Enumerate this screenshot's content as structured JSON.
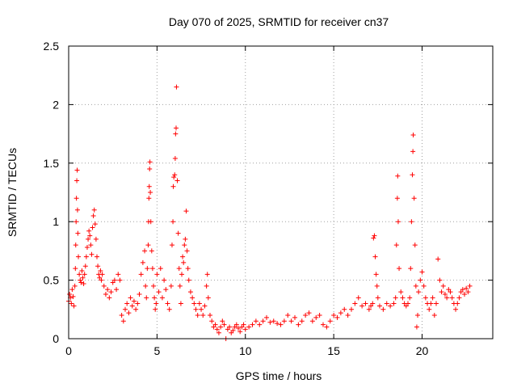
{
  "chart_data": {
    "type": "scatter",
    "title": "Day 070 of 2025, SRMTID for receiver cn37",
    "xlabel": "GPS time / hours",
    "ylabel": "SRMTID / TECUs",
    "xlim": [
      0,
      24
    ],
    "ylim": [
      0,
      2.5
    ],
    "xticks": [
      0,
      5,
      10,
      15,
      20
    ],
    "xtick_labels": [
      "0",
      "5",
      "10",
      "15",
      "20"
    ],
    "yticks": [
      0,
      0.5,
      1,
      1.5,
      2,
      2.5
    ],
    "ytick_labels": [
      "0",
      "0.5",
      "1",
      "1.5",
      "2",
      "2.5"
    ],
    "grid": true,
    "marker": "plus",
    "series": [
      {
        "name": "cn37",
        "color": "#ff0000",
        "points": [
          [
            0.0,
            0.32
          ],
          [
            0.05,
            0.38
          ],
          [
            0.1,
            0.35
          ],
          [
            0.15,
            0.3
          ],
          [
            0.2,
            0.42
          ],
          [
            0.25,
            0.36
          ],
          [
            0.3,
            0.28
          ],
          [
            0.35,
            0.45
          ],
          [
            0.38,
            0.6
          ],
          [
            0.4,
            0.8
          ],
          [
            0.42,
            1.0
          ],
          [
            0.44,
            1.2
          ],
          [
            0.46,
            1.35
          ],
          [
            0.48,
            1.44
          ],
          [
            0.5,
            1.1
          ],
          [
            0.52,
            0.9
          ],
          [
            0.55,
            0.7
          ],
          [
            0.6,
            0.55
          ],
          [
            0.65,
            0.5
          ],
          [
            0.7,
            0.48
          ],
          [
            0.75,
            0.58
          ],
          [
            0.8,
            0.52
          ],
          [
            0.85,
            0.47
          ],
          [
            0.9,
            0.55
          ],
          [
            0.95,
            0.62
          ],
          [
            1.0,
            0.7
          ],
          [
            1.05,
            0.78
          ],
          [
            1.1,
            0.85
          ],
          [
            1.15,
            0.92
          ],
          [
            1.2,
            0.88
          ],
          [
            1.25,
            0.8
          ],
          [
            1.3,
            0.72
          ],
          [
            1.35,
            0.95
          ],
          [
            1.4,
            1.05
          ],
          [
            1.45,
            1.1
          ],
          [
            1.5,
            0.98
          ],
          [
            1.55,
            0.85
          ],
          [
            1.6,
            0.7
          ],
          [
            1.65,
            0.62
          ],
          [
            1.7,
            0.55
          ],
          [
            1.75,
            0.52
          ],
          [
            1.8,
            0.58
          ],
          [
            1.85,
            0.5
          ],
          [
            1.9,
            0.55
          ],
          [
            2.0,
            0.45
          ],
          [
            2.1,
            0.38
          ],
          [
            2.2,
            0.42
          ],
          [
            2.3,
            0.35
          ],
          [
            2.4,
            0.4
          ],
          [
            2.5,
            0.48
          ],
          [
            2.6,
            0.5
          ],
          [
            2.7,
            0.42
          ],
          [
            2.8,
            0.55
          ],
          [
            2.9,
            0.5
          ],
          [
            3.0,
            0.2
          ],
          [
            3.1,
            0.15
          ],
          [
            3.2,
            0.25
          ],
          [
            3.3,
            0.3
          ],
          [
            3.4,
            0.22
          ],
          [
            3.5,
            0.35
          ],
          [
            3.6,
            0.28
          ],
          [
            3.7,
            0.32
          ],
          [
            3.8,
            0.25
          ],
          [
            3.9,
            0.3
          ],
          [
            4.0,
            0.38
          ],
          [
            4.1,
            0.55
          ],
          [
            4.2,
            0.65
          ],
          [
            4.3,
            0.75
          ],
          [
            4.35,
            0.45
          ],
          [
            4.4,
            0.35
          ],
          [
            4.45,
            0.6
          ],
          [
            4.5,
            0.8
          ],
          [
            4.52,
            1.0
          ],
          [
            4.54,
            1.2
          ],
          [
            4.56,
            1.3
          ],
          [
            4.58,
            1.45
          ],
          [
            4.6,
            1.51
          ],
          [
            4.62,
            1.25
          ],
          [
            4.65,
            1.0
          ],
          [
            4.7,
            0.75
          ],
          [
            4.75,
            0.6
          ],
          [
            4.8,
            0.45
          ],
          [
            4.85,
            0.35
          ],
          [
            4.9,
            0.25
          ],
          [
            4.95,
            0.3
          ],
          [
            5.0,
            0.55
          ],
          [
            5.1,
            0.4
          ],
          [
            5.2,
            0.6
          ],
          [
            5.3,
            0.35
          ],
          [
            5.4,
            0.5
          ],
          [
            5.5,
            0.42
          ],
          [
            5.6,
            0.3
          ],
          [
            5.7,
            0.25
          ],
          [
            5.8,
            0.45
          ],
          [
            5.85,
            0.8
          ],
          [
            5.9,
            1.0
          ],
          [
            5.92,
            1.3
          ],
          [
            5.95,
            1.38
          ],
          [
            6.0,
            1.4
          ],
          [
            6.03,
            1.54
          ],
          [
            6.05,
            1.75
          ],
          [
            6.08,
            1.8
          ],
          [
            6.1,
            2.15
          ],
          [
            6.15,
            1.35
          ],
          [
            6.2,
            0.9
          ],
          [
            6.25,
            0.6
          ],
          [
            6.3,
            0.45
          ],
          [
            6.35,
            0.3
          ],
          [
            6.4,
            0.55
          ],
          [
            6.45,
            0.7
          ],
          [
            6.5,
            0.65
          ],
          [
            6.55,
            0.8
          ],
          [
            6.6,
            0.85
          ],
          [
            6.65,
            1.09
          ],
          [
            6.7,
            0.75
          ],
          [
            6.75,
            0.6
          ],
          [
            6.8,
            0.5
          ],
          [
            6.9,
            0.4
          ],
          [
            7.0,
            0.35
          ],
          [
            7.1,
            0.3
          ],
          [
            7.2,
            0.25
          ],
          [
            7.3,
            0.2
          ],
          [
            7.4,
            0.3
          ],
          [
            7.5,
            0.25
          ],
          [
            7.6,
            0.2
          ],
          [
            7.7,
            0.28
          ],
          [
            7.8,
            0.45
          ],
          [
            7.85,
            0.55
          ],
          [
            7.9,
            0.35
          ],
          [
            8.0,
            0.2
          ],
          [
            8.1,
            0.15
          ],
          [
            8.2,
            0.1
          ],
          [
            8.3,
            0.12
          ],
          [
            8.4,
            0.08
          ],
          [
            8.5,
            0.05
          ],
          [
            8.6,
            0.1
          ],
          [
            8.7,
            0.15
          ],
          [
            8.8,
            0.12
          ],
          [
            8.9,
            0.0
          ],
          [
            9.0,
            0.08
          ],
          [
            9.1,
            0.1
          ],
          [
            9.2,
            0.05
          ],
          [
            9.3,
            0.07
          ],
          [
            9.4,
            0.1
          ],
          [
            9.5,
            0.12
          ],
          [
            9.6,
            0.09
          ],
          [
            9.7,
            0.06
          ],
          [
            9.8,
            0.1
          ],
          [
            9.9,
            0.12
          ],
          [
            10.0,
            0.08
          ],
          [
            10.2,
            0.1
          ],
          [
            10.4,
            0.12
          ],
          [
            10.6,
            0.15
          ],
          [
            10.8,
            0.12
          ],
          [
            11.0,
            0.15
          ],
          [
            11.2,
            0.18
          ],
          [
            11.4,
            0.14
          ],
          [
            11.6,
            0.15
          ],
          [
            11.8,
            0.13
          ],
          [
            12.0,
            0.12
          ],
          [
            12.2,
            0.15
          ],
          [
            12.4,
            0.2
          ],
          [
            12.6,
            0.15
          ],
          [
            12.8,
            0.18
          ],
          [
            13.0,
            0.12
          ],
          [
            13.2,
            0.15
          ],
          [
            13.4,
            0.2
          ],
          [
            13.6,
            0.22
          ],
          [
            13.8,
            0.15
          ],
          [
            14.0,
            0.18
          ],
          [
            14.2,
            0.2
          ],
          [
            14.4,
            0.12
          ],
          [
            14.6,
            0.1
          ],
          [
            14.8,
            0.15
          ],
          [
            15.0,
            0.2
          ],
          [
            15.2,
            0.18
          ],
          [
            15.4,
            0.22
          ],
          [
            15.6,
            0.25
          ],
          [
            15.8,
            0.2
          ],
          [
            16.0,
            0.25
          ],
          [
            16.2,
            0.3
          ],
          [
            16.4,
            0.35
          ],
          [
            16.6,
            0.28
          ],
          [
            16.8,
            0.3
          ],
          [
            17.0,
            0.25
          ],
          [
            17.1,
            0.28
          ],
          [
            17.2,
            0.3
          ],
          [
            17.25,
            0.86
          ],
          [
            17.3,
            0.88
          ],
          [
            17.35,
            0.7
          ],
          [
            17.4,
            0.55
          ],
          [
            17.45,
            0.45
          ],
          [
            17.5,
            0.35
          ],
          [
            17.6,
            0.28
          ],
          [
            17.8,
            0.25
          ],
          [
            18.0,
            0.3
          ],
          [
            18.2,
            0.28
          ],
          [
            18.4,
            0.3
          ],
          [
            18.5,
            0.35
          ],
          [
            18.55,
            0.8
          ],
          [
            18.6,
            1.2
          ],
          [
            18.62,
            1.39
          ],
          [
            18.65,
            1.0
          ],
          [
            18.7,
            0.6
          ],
          [
            18.8,
            0.4
          ],
          [
            18.9,
            0.35
          ],
          [
            19.0,
            0.3
          ],
          [
            19.1,
            0.28
          ],
          [
            19.2,
            0.3
          ],
          [
            19.3,
            0.35
          ],
          [
            19.35,
            0.6
          ],
          [
            19.4,
            1.0
          ],
          [
            19.45,
            1.4
          ],
          [
            19.48,
            1.6
          ],
          [
            19.5,
            1.74
          ],
          [
            19.55,
            1.2
          ],
          [
            19.6,
            0.8
          ],
          [
            19.65,
            0.45
          ],
          [
            19.7,
            0.1
          ],
          [
            19.75,
            0.2
          ],
          [
            19.8,
            0.4
          ],
          [
            19.9,
            0.5
          ],
          [
            20.0,
            0.57
          ],
          [
            20.1,
            0.45
          ],
          [
            20.2,
            0.35
          ],
          [
            20.3,
            0.3
          ],
          [
            20.4,
            0.25
          ],
          [
            20.5,
            0.3
          ],
          [
            20.6,
            0.35
          ],
          [
            20.7,
            0.2
          ],
          [
            20.8,
            0.3
          ],
          [
            20.9,
            0.68
          ],
          [
            21.0,
            0.5
          ],
          [
            21.1,
            0.4
          ],
          [
            21.2,
            0.45
          ],
          [
            21.3,
            0.38
          ],
          [
            21.4,
            0.35
          ],
          [
            21.5,
            0.42
          ],
          [
            21.6,
            0.4
          ],
          [
            21.7,
            0.35
          ],
          [
            21.8,
            0.3
          ],
          [
            21.9,
            0.25
          ],
          [
            22.0,
            0.3
          ],
          [
            22.1,
            0.35
          ],
          [
            22.2,
            0.4
          ],
          [
            22.3,
            0.42
          ],
          [
            22.4,
            0.38
          ],
          [
            22.5,
            0.43
          ],
          [
            22.6,
            0.4
          ],
          [
            22.7,
            0.45
          ]
        ]
      }
    ]
  }
}
